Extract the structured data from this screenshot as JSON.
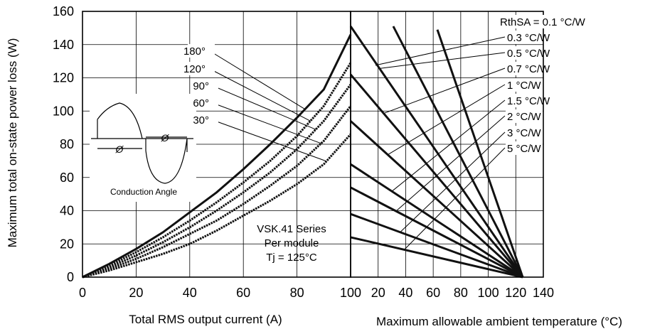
{
  "chart_data": [
    {
      "type": "line",
      "xlabel": "Total RMS output current (A)",
      "ylabel": "Maximum total on-state power loss (W)",
      "xlim": [
        0,
        100
      ],
      "ylim": [
        0,
        160
      ],
      "x_ticks": [
        "0",
        "20",
        "40",
        "60",
        "80",
        "100"
      ],
      "y_ticks": [
        "0",
        "20",
        "40",
        "60",
        "80",
        "100",
        "120",
        "140",
        "160"
      ],
      "grid": true,
      "series": [
        {
          "name": "180°",
          "x": [
            0,
            10,
            20,
            30,
            40,
            50,
            60,
            70,
            80,
            90,
            100
          ],
          "y": [
            0,
            8,
            17,
            27,
            39,
            51,
            65,
            80,
            96,
            113,
            146
          ]
        },
        {
          "name": "120°",
          "x": [
            0,
            10,
            20,
            30,
            40,
            50,
            60,
            70,
            80,
            90,
            100
          ],
          "y": [
            0,
            7,
            15,
            24,
            34,
            45,
            57,
            70,
            85,
            103,
            129
          ]
        },
        {
          "name": "90°",
          "x": [
            0,
            10,
            20,
            30,
            40,
            50,
            60,
            70,
            80,
            90,
            100
          ],
          "y": [
            0,
            6,
            13,
            21,
            30,
            40,
            51,
            63,
            77,
            94,
            116
          ]
        },
        {
          "name": "60°",
          "x": [
            0,
            10,
            20,
            30,
            40,
            50,
            60,
            70,
            80,
            90,
            100
          ],
          "y": [
            0,
            5,
            11,
            18,
            26,
            34,
            44,
            55,
            67,
            82,
            103
          ]
        },
        {
          "name": "30°",
          "x": [
            0,
            10,
            20,
            30,
            40,
            50,
            60,
            70,
            80,
            90,
            100
          ],
          "y": [
            0,
            4,
            9,
            14,
            20,
            28,
            37,
            46,
            56,
            68,
            86
          ]
        }
      ],
      "annotations": [
        "VSK.41 Series",
        "Per module",
        "Tj = 125°C"
      ],
      "inset": {
        "label": "Conduction Angle",
        "symbol": "Ø"
      }
    },
    {
      "type": "line",
      "xlabel": "Maximum allowable ambient temperature (°C)",
      "xlim": [
        0,
        140
      ],
      "ylim": [
        0,
        160
      ],
      "x_ticks": [
        "20",
        "40",
        "60",
        "80",
        "100",
        "120",
        "140"
      ],
      "grid": true,
      "series": [
        {
          "name": "RthSA = 0.1 °C/W",
          "x": [
            31,
            125
          ],
          "y": [
            151,
            0
          ]
        },
        {
          "name": "0.3 °C/W",
          "x": [
            63,
            125
          ],
          "y": [
            149,
            0
          ]
        },
        {
          "name": "0.5 °C/W",
          "x": [
            0,
            125
          ],
          "y": [
            151,
            0
          ]
        },
        {
          "name": "0.7 °C/W",
          "x": [
            0,
            125
          ],
          "y": [
            122,
            0
          ]
        },
        {
          "name": "1 °C/W",
          "x": [
            0,
            125
          ],
          "y": [
            94,
            0
          ]
        },
        {
          "name": "1.5 °C/W",
          "x": [
            0,
            125
          ],
          "y": [
            68,
            0
          ]
        },
        {
          "name": "2 °C/W",
          "x": [
            0,
            125
          ],
          "y": [
            54,
            0
          ]
        },
        {
          "name": "3 °C/W",
          "x": [
            0,
            125
          ],
          "y": [
            38,
            0
          ]
        },
        {
          "name": "5 °C/W",
          "x": [
            0,
            125
          ],
          "y": [
            24,
            0
          ]
        }
      ]
    }
  ]
}
